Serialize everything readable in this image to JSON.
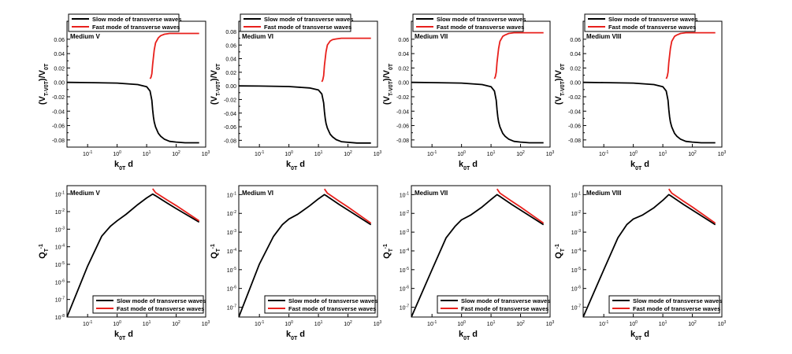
{
  "figure": {
    "legend_slow": "Slow mode of transverse waves",
    "legend_fast": "Fast mode of transverse waves",
    "colors": {
      "slow": "#000000",
      "fast": "#e8201c",
      "axis": "#000000"
    }
  },
  "chart_data": [
    {
      "type": "line",
      "row": "top",
      "medium": "Medium V",
      "xlabel": "k_0T d",
      "ylabel": "(V_T-V_0T)/V_0T",
      "xscale": "log",
      "xlim": [
        0.02,
        1000
      ],
      "ylim": [
        -0.09,
        0.085
      ],
      "yticks": [
        -0.08,
        -0.06,
        -0.04,
        -0.02,
        0.0,
        0.02,
        0.04,
        0.06
      ],
      "ytick_labels": [
        "-0.08",
        "-0.06",
        "-0.04",
        "-0.02",
        "0.00",
        "0.02",
        "0.04",
        "0.06"
      ],
      "xticks": [
        0.1,
        1,
        10,
        100,
        1000
      ],
      "xtick_labels": [
        "10^-1",
        "10^0",
        "10^1",
        "10^2",
        "10^3"
      ],
      "legend_position": "top-left",
      "series": [
        {
          "name": "Slow mode of transverse waves",
          "color": "#000000",
          "x": [
            0.02,
            0.1,
            1,
            5,
            10,
            13,
            15,
            16,
            17,
            18,
            20,
            25,
            30,
            40,
            60,
            100,
            200,
            600
          ],
          "y": [
            0.0,
            -0.0003,
            -0.001,
            -0.003,
            -0.006,
            -0.012,
            -0.025,
            -0.038,
            -0.048,
            -0.055,
            -0.062,
            -0.071,
            -0.075,
            -0.079,
            -0.082,
            -0.083,
            -0.084,
            -0.084
          ]
        },
        {
          "name": "Fast mode of transverse waves",
          "color": "#e8201c",
          "x": [
            13,
            14,
            15,
            16,
            18,
            20,
            25,
            30,
            40,
            60,
            100,
            200,
            600
          ],
          "y": [
            0.005,
            0.007,
            0.012,
            0.025,
            0.045,
            0.055,
            0.062,
            0.065,
            0.067,
            0.068,
            0.068,
            0.068,
            0.068
          ]
        }
      ]
    },
    {
      "type": "line",
      "row": "top",
      "medium": "Medium VI",
      "xlabel": "k_0T d",
      "ylabel": "(V_T-V_0T)/V_0T",
      "xscale": "log",
      "xlim": [
        0.02,
        1000
      ],
      "ylim": [
        -0.09,
        0.095
      ],
      "yticks": [
        -0.08,
        -0.06,
        -0.04,
        -0.02,
        0.0,
        0.02,
        0.04,
        0.06,
        0.08
      ],
      "ytick_labels": [
        "-0.08",
        "-0.06",
        "-0.04",
        "-0.02",
        "0.00",
        "0.02",
        "0.04",
        "0.06",
        "0.08"
      ],
      "xticks": [
        0.1,
        1,
        10,
        100,
        1000
      ],
      "xtick_labels": [
        "10^-1",
        "10^0",
        "10^1",
        "10^2",
        "10^3"
      ],
      "legend_position": "top-left",
      "series": [
        {
          "name": "Slow mode of transverse waves",
          "color": "#000000",
          "x": [
            0.02,
            0.1,
            1,
            5,
            10,
            13,
            15,
            16,
            17,
            18,
            20,
            25,
            30,
            40,
            60,
            100,
            200,
            600
          ],
          "y": [
            0.0,
            -0.0003,
            -0.001,
            -0.003,
            -0.006,
            -0.012,
            -0.025,
            -0.038,
            -0.048,
            -0.055,
            -0.062,
            -0.071,
            -0.075,
            -0.079,
            -0.082,
            -0.083,
            -0.084,
            -0.084
          ]
        },
        {
          "name": "Fast mode of transverse waves",
          "color": "#e8201c",
          "x": [
            13,
            14,
            15,
            16,
            18,
            20,
            25,
            30,
            40,
            60,
            100,
            200,
            600
          ],
          "y": [
            0.006,
            0.009,
            0.015,
            0.03,
            0.05,
            0.06,
            0.066,
            0.068,
            0.069,
            0.07,
            0.07,
            0.07,
            0.07
          ]
        }
      ]
    },
    {
      "type": "line",
      "row": "top",
      "medium": "Medium VII",
      "xlabel": "k_0T d",
      "ylabel": "(V_T-V_0T)/V_0T",
      "xscale": "log",
      "xlim": [
        0.02,
        1000
      ],
      "ylim": [
        -0.09,
        0.085
      ],
      "yticks": [
        -0.08,
        -0.06,
        -0.04,
        -0.02,
        0.0,
        0.02,
        0.04,
        0.06
      ],
      "ytick_labels": [
        "-0.08",
        "-0.06",
        "-0.04",
        "-0.02",
        "0.00",
        "0.02",
        "0.04",
        "0.06"
      ],
      "xticks": [
        0.1,
        1,
        10,
        100,
        1000
      ],
      "xtick_labels": [
        "10^-1",
        "10^0",
        "10^1",
        "10^2",
        "10^3"
      ],
      "legend_position": "top-left",
      "series": [
        {
          "name": "Slow mode of transverse waves",
          "color": "#000000",
          "x": [
            0.02,
            0.1,
            1,
            5,
            10,
            13,
            15,
            16,
            17,
            18,
            20,
            25,
            30,
            40,
            60,
            100,
            200,
            600
          ],
          "y": [
            0.0,
            -0.0003,
            -0.001,
            -0.003,
            -0.006,
            -0.012,
            -0.025,
            -0.038,
            -0.048,
            -0.055,
            -0.062,
            -0.071,
            -0.075,
            -0.079,
            -0.082,
            -0.083,
            -0.084,
            -0.084
          ]
        },
        {
          "name": "Fast mode of transverse waves",
          "color": "#e8201c",
          "x": [
            13,
            14,
            15,
            16,
            18,
            20,
            25,
            30,
            40,
            60,
            100,
            200,
            600
          ],
          "y": [
            0.005,
            0.008,
            0.014,
            0.028,
            0.047,
            0.057,
            0.064,
            0.066,
            0.068,
            0.069,
            0.069,
            0.069,
            0.069
          ]
        }
      ]
    },
    {
      "type": "line",
      "row": "top",
      "medium": "Medium VIII",
      "xlabel": "k_0T d",
      "ylabel": "(V_T-V_0T)/V_0T",
      "xscale": "log",
      "xlim": [
        0.02,
        1000
      ],
      "ylim": [
        -0.09,
        0.085
      ],
      "yticks": [
        -0.08,
        -0.06,
        -0.04,
        -0.02,
        0.0,
        0.02,
        0.04,
        0.06
      ],
      "ytick_labels": [
        "-0.08",
        "-0.06",
        "-0.04",
        "-0.02",
        "0.00",
        "0.02",
        "0.04",
        "0.06"
      ],
      "xticks": [
        0.1,
        1,
        10,
        100,
        1000
      ],
      "xtick_labels": [
        "10^-1",
        "10^0",
        "10^1",
        "10^2",
        "10^3"
      ],
      "legend_position": "top-left",
      "series": [
        {
          "name": "Slow mode of transverse waves",
          "color": "#000000",
          "x": [
            0.02,
            0.1,
            1,
            5,
            10,
            13,
            15,
            16,
            17,
            18,
            20,
            25,
            30,
            40,
            60,
            100,
            200,
            600
          ],
          "y": [
            0.0,
            -0.0003,
            -0.001,
            -0.003,
            -0.006,
            -0.012,
            -0.025,
            -0.038,
            -0.048,
            -0.055,
            -0.062,
            -0.071,
            -0.075,
            -0.079,
            -0.082,
            -0.083,
            -0.084,
            -0.084
          ]
        },
        {
          "name": "Fast mode of transverse waves",
          "color": "#e8201c",
          "x": [
            13,
            14,
            15,
            16,
            18,
            20,
            25,
            30,
            40,
            60,
            100,
            200,
            600
          ],
          "y": [
            0.005,
            0.008,
            0.014,
            0.028,
            0.047,
            0.057,
            0.064,
            0.066,
            0.068,
            0.069,
            0.069,
            0.069,
            0.069
          ]
        }
      ]
    },
    {
      "type": "line",
      "row": "bottom",
      "medium": "Medium V",
      "xlabel": "k_0T d",
      "ylabel": "Q_T^-1",
      "xscale": "log",
      "yscale": "log",
      "xlim": [
        0.02,
        1000
      ],
      "ylim": [
        1e-08,
        0.3
      ],
      "yticks": [
        1e-08,
        1e-07,
        1e-06,
        1e-05,
        0.0001,
        0.001,
        0.01,
        0.1
      ],
      "ytick_labels": [
        "10^-8",
        "10^-7",
        "10^-6",
        "10^-5",
        "10^-4",
        "10^-3",
        "10^-2",
        "10^-1"
      ],
      "xticks": [
        0.1,
        1,
        10,
        100,
        1000
      ],
      "xtick_labels": [
        "10^-1",
        "10^0",
        "10^1",
        "10^2",
        "10^3"
      ],
      "legend_position": "bottom-right",
      "series": [
        {
          "name": "Slow mode of transverse waves",
          "color": "#000000",
          "x": [
            0.02,
            0.1,
            0.3,
            0.6,
            1,
            2,
            5,
            10,
            16,
            20,
            50,
            100,
            600
          ],
          "y": [
            1e-08,
            8e-06,
            0.0004,
            0.0015,
            0.003,
            0.007,
            0.025,
            0.06,
            0.1,
            0.08,
            0.03,
            0.015,
            0.0025
          ]
        },
        {
          "name": "Fast mode of transverse waves",
          "color": "#e8201c",
          "x": [
            16,
            20,
            50,
            100,
            600
          ],
          "y": [
            0.2,
            0.12,
            0.045,
            0.022,
            0.003
          ]
        }
      ]
    },
    {
      "type": "line",
      "row": "bottom",
      "medium": "Medium VI",
      "xlabel": "k_0T d",
      "ylabel": "Q_T^-1",
      "xscale": "log",
      "yscale": "log",
      "xlim": [
        0.02,
        1000
      ],
      "ylim": [
        3e-08,
        0.3
      ],
      "yticks": [
        1e-07,
        1e-06,
        1e-05,
        0.0001,
        0.001,
        0.01,
        0.1
      ],
      "ytick_labels": [
        "10^-7",
        "10^-6",
        "10^-5",
        "10^-4",
        "10^-3",
        "10^-2",
        "10^-1"
      ],
      "xticks": [
        0.1,
        1,
        10,
        100,
        1000
      ],
      "xtick_labels": [
        "10^-1",
        "10^0",
        "10^1",
        "10^2",
        "10^3"
      ],
      "legend_position": "bottom-right",
      "series": [
        {
          "name": "Slow mode of transverse waves",
          "color": "#000000",
          "x": [
            0.02,
            0.1,
            0.3,
            0.6,
            1,
            2,
            5,
            10,
            16,
            20,
            50,
            100,
            600
          ],
          "y": [
            3e-08,
            2e-05,
            0.0006,
            0.0025,
            0.005,
            0.009,
            0.025,
            0.06,
            0.1,
            0.08,
            0.03,
            0.015,
            0.0025
          ]
        },
        {
          "name": "Fast mode of transverse waves",
          "color": "#e8201c",
          "x": [
            16,
            20,
            50,
            100,
            600
          ],
          "y": [
            0.2,
            0.12,
            0.045,
            0.022,
            0.003
          ]
        }
      ]
    },
    {
      "type": "line",
      "row": "bottom",
      "medium": "Medium VII",
      "xlabel": "k_0T d",
      "ylabel": "Q_T^-1",
      "xscale": "log",
      "yscale": "log",
      "xlim": [
        0.02,
        1000
      ],
      "ylim": [
        3e-08,
        0.3
      ],
      "yticks": [
        1e-07,
        1e-06,
        1e-05,
        0.0001,
        0.001,
        0.01,
        0.1
      ],
      "ytick_labels": [
        "10^-7",
        "10^-6",
        "10^-5",
        "10^-4",
        "10^-3",
        "10^-2",
        "10^-1"
      ],
      "xticks": [
        0.1,
        1,
        10,
        100,
        1000
      ],
      "xtick_labels": [
        "10^-1",
        "10^0",
        "10^1",
        "10^2",
        "10^3"
      ],
      "legend_position": "bottom-right",
      "series": [
        {
          "name": "Slow mode of transverse waves",
          "color": "#000000",
          "x": [
            0.02,
            0.1,
            0.3,
            0.6,
            1,
            2,
            5,
            10,
            16,
            20,
            50,
            100,
            600
          ],
          "y": [
            3e-08,
            1e-05,
            0.0005,
            0.002,
            0.0045,
            0.008,
            0.022,
            0.055,
            0.1,
            0.08,
            0.03,
            0.015,
            0.0025
          ]
        },
        {
          "name": "Fast mode of transverse waves",
          "color": "#e8201c",
          "x": [
            16,
            20,
            50,
            100,
            600
          ],
          "y": [
            0.2,
            0.12,
            0.045,
            0.022,
            0.003
          ]
        }
      ]
    },
    {
      "type": "line",
      "row": "bottom",
      "medium": "Medium VIII",
      "xlabel": "k_0T d",
      "ylabel": "Q_T^-1",
      "xscale": "log",
      "yscale": "log",
      "xlim": [
        0.02,
        1000
      ],
      "ylim": [
        3e-08,
        0.3
      ],
      "yticks": [
        1e-07,
        1e-06,
        1e-05,
        0.0001,
        0.001,
        0.01,
        0.1
      ],
      "ytick_labels": [
        "10^-7",
        "10^-6",
        "10^-5",
        "10^-4",
        "10^-3",
        "10^-2",
        "10^-1"
      ],
      "xticks": [
        0.1,
        1,
        10,
        100,
        1000
      ],
      "xtick_labels": [
        "10^-1",
        "10^0",
        "10^1",
        "10^2",
        "10^3"
      ],
      "legend_position": "bottom-right",
      "series": [
        {
          "name": "Slow mode of transverse waves",
          "color": "#000000",
          "x": [
            0.02,
            0.1,
            0.3,
            0.6,
            1,
            2,
            5,
            10,
            16,
            20,
            50,
            100,
            600
          ],
          "y": [
            3e-08,
            1e-05,
            0.0005,
            0.0025,
            0.005,
            0.008,
            0.02,
            0.05,
            0.1,
            0.08,
            0.03,
            0.015,
            0.0025
          ]
        },
        {
          "name": "Fast mode of transverse waves",
          "color": "#e8201c",
          "x": [
            16,
            20,
            50,
            100,
            600
          ],
          "y": [
            0.2,
            0.12,
            0.045,
            0.022,
            0.003
          ]
        }
      ]
    }
  ]
}
